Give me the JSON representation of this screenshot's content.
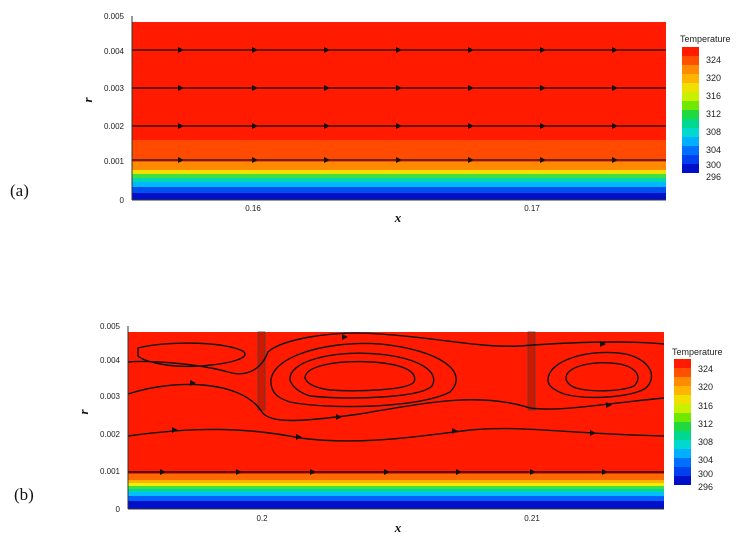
{
  "legend": {
    "title": "Temperature",
    "levels": [
      "324",
      "320",
      "316",
      "312",
      "308",
      "304",
      "300",
      "296"
    ]
  },
  "colors": {
    "red": "#ff1a00",
    "orange": "#ff6a00",
    "band_top": "#ffb000",
    "band_yellow": "#f0f000",
    "band_green": "#40e040",
    "band_teal": "#00d8a0",
    "band_cyan": "#00c0ff",
    "band_blue": "#0060ff",
    "band_navy": "#0010c8",
    "streamline": "#111111",
    "fin": "#c81400"
  },
  "panel_a": {
    "label": "(a)",
    "xlabel": "x",
    "ylabel": "r",
    "y_ticks": [
      "0.005",
      "0.004",
      "0.003",
      "0.002",
      "0.001",
      "0"
    ],
    "x_ticks": [
      "0.16",
      "0.17"
    ]
  },
  "panel_b": {
    "label": "(b)",
    "xlabel": "x",
    "ylabel": "r",
    "y_ticks": [
      "0.005",
      "0.004",
      "0.003",
      "0.002",
      "0.001",
      "0"
    ],
    "x_ticks": [
      "0.2",
      "0.21"
    ]
  }
}
